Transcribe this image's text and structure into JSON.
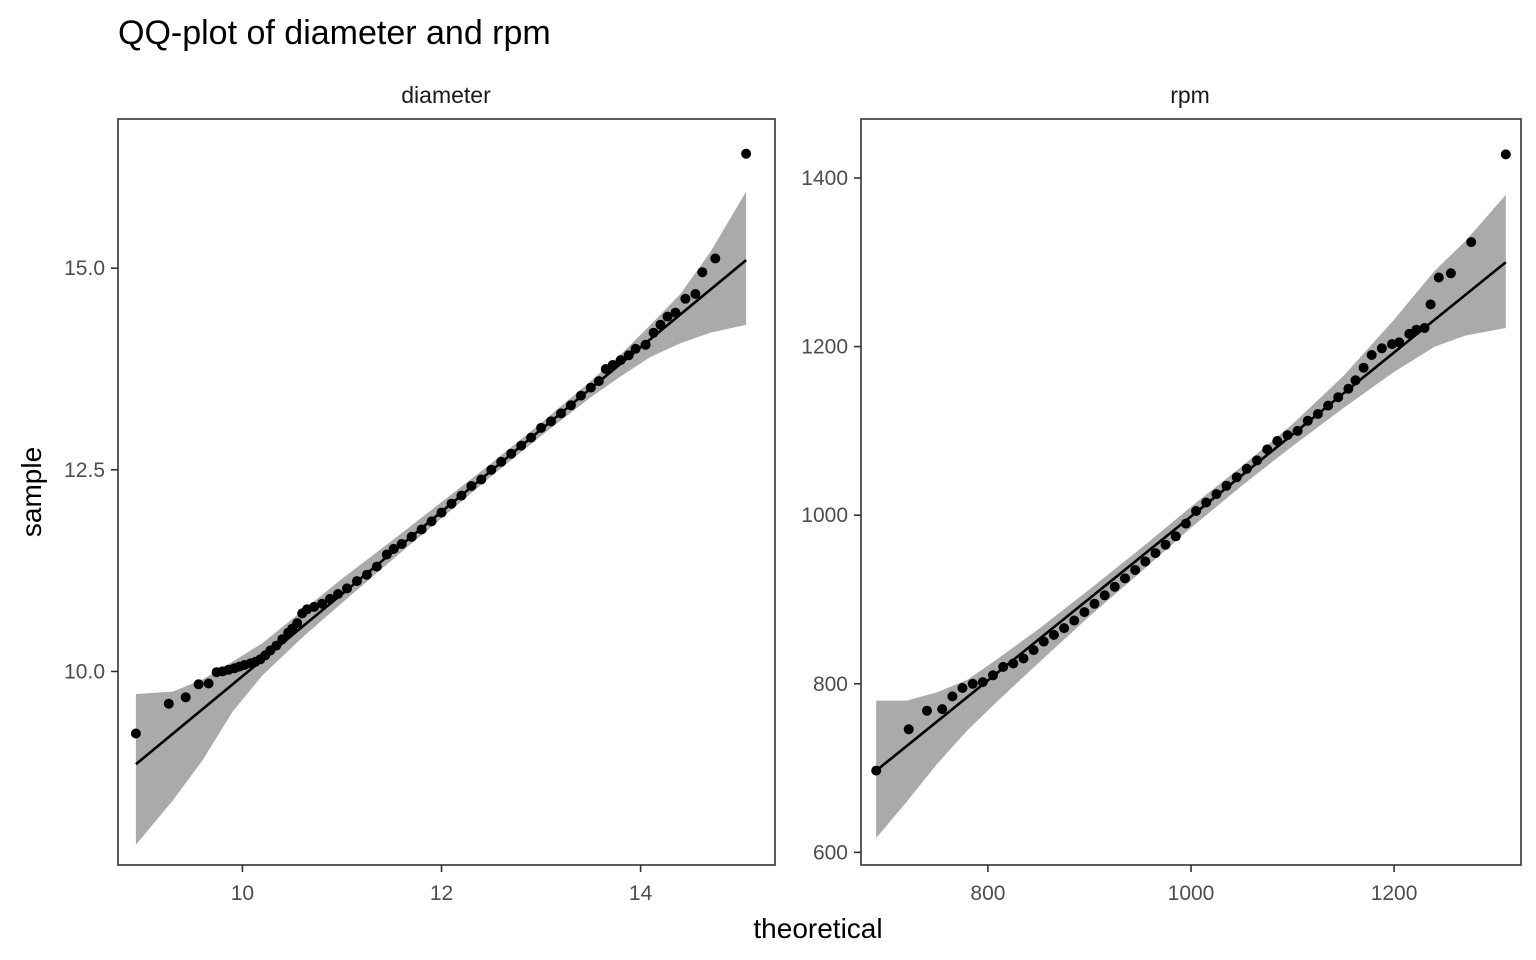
{
  "chart_data": {
    "type": "scatter",
    "title": "QQ-plot of diameter and rpm",
    "xlabel": "theoretical",
    "ylabel": "sample",
    "grid": false,
    "legend": "none",
    "colors": {
      "points": "#000000",
      "line": "#000000",
      "band": "#aaaaaa",
      "frame": "#333333"
    },
    "facets": [
      {
        "name": "diameter",
        "xlim": [
          8.75,
          15.35
        ],
        "ylim": [
          7.6,
          16.85
        ],
        "xticks": [
          10,
          12,
          14
        ],
        "xtick_labels": [
          "10",
          "12",
          "14"
        ],
        "yticks": [
          10,
          12.5,
          15
        ],
        "ytick_labels": [
          "10.0",
          "12.5",
          "15.0"
        ],
        "reference_line": {
          "x": [
            8.93,
            15.06
          ],
          "y": [
            8.85,
            15.1
          ]
        },
        "band": {
          "x": [
            8.93,
            9.3,
            9.6,
            9.9,
            10.2,
            10.6,
            11.0,
            11.5,
            12.0,
            12.5,
            13.0,
            13.5,
            13.8,
            14.1,
            14.4,
            14.7,
            15.06
          ],
          "upper": [
            9.72,
            9.75,
            9.9,
            10.12,
            10.35,
            10.75,
            11.15,
            11.62,
            12.1,
            12.58,
            13.08,
            13.6,
            13.93,
            14.3,
            14.68,
            15.2,
            15.95
          ],
          "lower": [
            7.85,
            8.4,
            8.9,
            9.5,
            9.95,
            10.42,
            10.85,
            11.38,
            11.9,
            12.42,
            12.92,
            13.4,
            13.66,
            13.9,
            14.07,
            14.2,
            14.3
          ]
        },
        "points": [
          [
            8.93,
            9.23
          ],
          [
            9.26,
            9.6
          ],
          [
            9.43,
            9.68
          ],
          [
            9.56,
            9.84
          ],
          [
            9.66,
            9.85
          ],
          [
            9.74,
            9.99
          ],
          [
            9.8,
            10.0
          ],
          [
            9.86,
            10.02
          ],
          [
            9.92,
            10.04
          ],
          [
            9.97,
            10.06
          ],
          [
            10.02,
            10.08
          ],
          [
            10.08,
            10.1
          ],
          [
            10.13,
            10.12
          ],
          [
            10.18,
            10.15
          ],
          [
            10.23,
            10.2
          ],
          [
            10.28,
            10.26
          ],
          [
            10.34,
            10.32
          ],
          [
            10.4,
            10.4
          ],
          [
            10.46,
            10.48
          ],
          [
            10.5,
            10.53
          ],
          [
            10.55,
            10.6
          ],
          [
            10.6,
            10.72
          ],
          [
            10.65,
            10.77
          ],
          [
            10.72,
            10.8
          ],
          [
            10.8,
            10.84
          ],
          [
            10.88,
            10.9
          ],
          [
            10.96,
            10.96
          ],
          [
            11.05,
            11.03
          ],
          [
            11.15,
            11.12
          ],
          [
            11.25,
            11.2
          ],
          [
            11.35,
            11.3
          ],
          [
            11.45,
            11.45
          ],
          [
            11.52,
            11.52
          ],
          [
            11.6,
            11.58
          ],
          [
            11.7,
            11.67
          ],
          [
            11.8,
            11.76
          ],
          [
            11.9,
            11.86
          ],
          [
            12.0,
            11.97
          ],
          [
            12.1,
            12.08
          ],
          [
            12.2,
            12.18
          ],
          [
            12.3,
            12.3
          ],
          [
            12.4,
            12.38
          ],
          [
            12.5,
            12.5
          ],
          [
            12.6,
            12.6
          ],
          [
            12.7,
            12.7
          ],
          [
            12.8,
            12.8
          ],
          [
            12.9,
            12.9
          ],
          [
            13.0,
            13.02
          ],
          [
            13.1,
            13.1
          ],
          [
            13.2,
            13.2
          ],
          [
            13.3,
            13.3
          ],
          [
            13.4,
            13.42
          ],
          [
            13.5,
            13.52
          ],
          [
            13.58,
            13.6
          ],
          [
            13.65,
            13.75
          ],
          [
            13.72,
            13.8
          ],
          [
            13.8,
            13.86
          ],
          [
            13.88,
            13.92
          ],
          [
            13.95,
            14.0
          ],
          [
            14.05,
            14.05
          ],
          [
            14.13,
            14.2
          ],
          [
            14.2,
            14.3
          ],
          [
            14.27,
            14.4
          ],
          [
            14.35,
            14.45
          ],
          [
            14.45,
            14.62
          ],
          [
            14.55,
            14.68
          ],
          [
            14.62,
            14.95
          ],
          [
            14.75,
            15.12
          ],
          [
            15.06,
            16.42
          ]
        ]
      },
      {
        "name": "rpm",
        "xlim": [
          675,
          1325
        ],
        "ylim": [
          585,
          1470
        ],
        "xticks": [
          800,
          1000,
          1200
        ],
        "xtick_labels": [
          "800",
          "1000",
          "1200"
        ],
        "yticks": [
          600,
          800,
          1000,
          1200,
          1400
        ],
        "ytick_labels": [
          "600",
          "800",
          "1000",
          "1200",
          "1400"
        ],
        "reference_line": {
          "x": [
            690,
            1310
          ],
          "y": [
            697,
            1300
          ]
        },
        "band": {
          "x": [
            690,
            720,
            750,
            780,
            810,
            850,
            900,
            950,
            1000,
            1050,
            1100,
            1150,
            1200,
            1240,
            1270,
            1310
          ],
          "upper": [
            780,
            780,
            790,
            805,
            830,
            865,
            912,
            960,
            1010,
            1058,
            1108,
            1165,
            1232,
            1290,
            1325,
            1380
          ],
          "lower": [
            617,
            660,
            705,
            745,
            780,
            825,
            880,
            932,
            985,
            1035,
            1082,
            1127,
            1170,
            1200,
            1213,
            1222
          ]
        },
        "points": [
          [
            690,
            697
          ],
          [
            722,
            746
          ],
          [
            740,
            768
          ],
          [
            755,
            770
          ],
          [
            765,
            785
          ],
          [
            775,
            795
          ],
          [
            785,
            800
          ],
          [
            795,
            802
          ],
          [
            805,
            810
          ],
          [
            815,
            820
          ],
          [
            825,
            824
          ],
          [
            835,
            830
          ],
          [
            845,
            840
          ],
          [
            855,
            850
          ],
          [
            865,
            858
          ],
          [
            875,
            866
          ],
          [
            885,
            875
          ],
          [
            895,
            885
          ],
          [
            905,
            895
          ],
          [
            915,
            905
          ],
          [
            925,
            915
          ],
          [
            935,
            925
          ],
          [
            945,
            935
          ],
          [
            955,
            945
          ],
          [
            965,
            955
          ],
          [
            975,
            965
          ],
          [
            985,
            975
          ],
          [
            995,
            990
          ],
          [
            1005,
            1005
          ],
          [
            1015,
            1015
          ],
          [
            1025,
            1025
          ],
          [
            1035,
            1035
          ],
          [
            1045,
            1045
          ],
          [
            1055,
            1055
          ],
          [
            1065,
            1065
          ],
          [
            1075,
            1078
          ],
          [
            1085,
            1088
          ],
          [
            1095,
            1095
          ],
          [
            1105,
            1100
          ],
          [
            1115,
            1112
          ],
          [
            1125,
            1120
          ],
          [
            1135,
            1130
          ],
          [
            1145,
            1140
          ],
          [
            1155,
            1150
          ],
          [
            1162,
            1160
          ],
          [
            1170,
            1175
          ],
          [
            1178,
            1190
          ],
          [
            1188,
            1198
          ],
          [
            1198,
            1203
          ],
          [
            1205,
            1205
          ],
          [
            1215,
            1215
          ],
          [
            1222,
            1220
          ],
          [
            1230,
            1222
          ],
          [
            1236,
            1250
          ],
          [
            1244,
            1282
          ],
          [
            1256,
            1287
          ],
          [
            1276,
            1324
          ],
          [
            1310,
            1428
          ]
        ]
      }
    ]
  }
}
